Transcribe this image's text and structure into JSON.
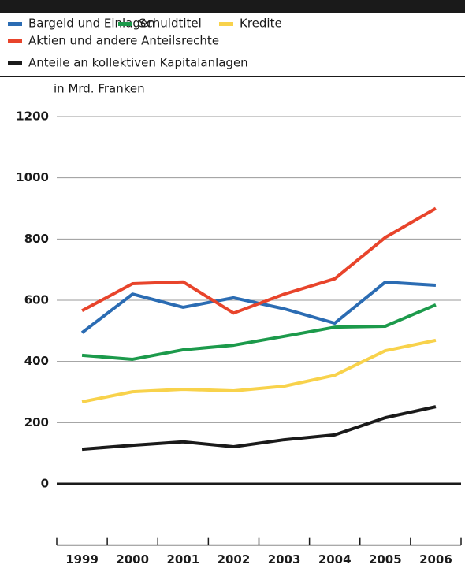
{
  "chart_data": {
    "type": "line",
    "ylabel": "in Mrd. Franken",
    "categories": [
      "1999",
      "2000",
      "2001",
      "2002",
      "2003",
      "2004",
      "2005",
      "2006"
    ],
    "series": [
      {
        "name": "Bargeld und Einlagen",
        "color": "#2b6cb3",
        "values": [
          494,
          620,
          577,
          608,
          572,
          525,
          659,
          649
        ]
      },
      {
        "name": "Schuldtitel",
        "color": "#1c9a4b",
        "values": [
          420,
          407,
          438,
          453,
          482,
          512,
          515,
          585
        ]
      },
      {
        "name": "Kredite",
        "color": "#f8d24b",
        "values": [
          268,
          301,
          309,
          304,
          319,
          355,
          435,
          469
        ]
      },
      {
        "name": "Aktien und andere Anteilsrechte",
        "color": "#e8442b",
        "values": [
          566,
          654,
          660,
          558,
          620,
          670,
          805,
          900
        ]
      },
      {
        "name": "Anteile an kollektiven Kapitalanlagen",
        "color": "#1a1a1a",
        "values": [
          113,
          126,
          137,
          121,
          144,
          160,
          216,
          252
        ]
      }
    ],
    "ylim": [
      -200,
      1200
    ],
    "yticks": [
      0,
      200,
      400,
      600,
      800,
      1000,
      1200
    ],
    "grid": true
  }
}
